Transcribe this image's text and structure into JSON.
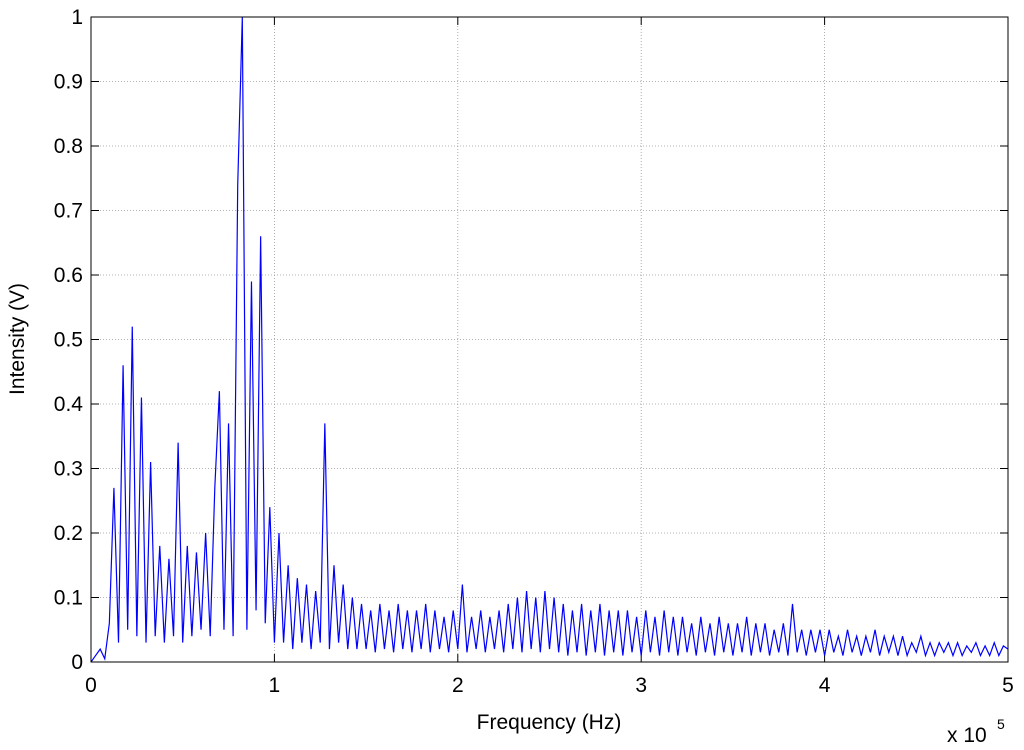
{
  "chart_data": {
    "type": "line",
    "xlabel": "Frequency (Hz)",
    "ylabel": "Intensity (V)",
    "x_multiplier": "x 10",
    "x_multiplier_exponent": "5",
    "xlim": [
      0,
      5
    ],
    "ylim": [
      0,
      1
    ],
    "xticks": [
      0,
      1,
      2,
      3,
      4,
      5
    ],
    "yticks": [
      0,
      0.1,
      0.2,
      0.3,
      0.4,
      0.5,
      0.6,
      0.7,
      0.8,
      0.9,
      1
    ],
    "grid": true,
    "series": [
      {
        "color": "#0000ff",
        "x": [
          0,
          0.025,
          0.05,
          0.075,
          0.1,
          0.125,
          0.15,
          0.175,
          0.2,
          0.225,
          0.25,
          0.275,
          0.3,
          0.325,
          0.35,
          0.375,
          0.4,
          0.425,
          0.45,
          0.475,
          0.5,
          0.525,
          0.55,
          0.575,
          0.6,
          0.625,
          0.65,
          0.675,
          0.7,
          0.725,
          0.75,
          0.775,
          0.8,
          0.825,
          0.85,
          0.875,
          0.9,
          0.925,
          0.95,
          0.975,
          1,
          1.025,
          1.05,
          1.075,
          1.1,
          1.125,
          1.15,
          1.175,
          1.2,
          1.225,
          1.25,
          1.275,
          1.3,
          1.325,
          1.35,
          1.375,
          1.4,
          1.425,
          1.45,
          1.475,
          1.5,
          1.525,
          1.55,
          1.575,
          1.6,
          1.625,
          1.65,
          1.675,
          1.7,
          1.725,
          1.75,
          1.775,
          1.8,
          1.825,
          1.85,
          1.875,
          1.9,
          1.925,
          1.95,
          1.975,
          2,
          2.025,
          2.05,
          2.075,
          2.1,
          2.125,
          2.15,
          2.175,
          2.2,
          2.225,
          2.25,
          2.275,
          2.3,
          2.325,
          2.35,
          2.375,
          2.4,
          2.425,
          2.45,
          2.475,
          2.5,
          2.525,
          2.55,
          2.575,
          2.6,
          2.625,
          2.65,
          2.675,
          2.7,
          2.725,
          2.75,
          2.775,
          2.8,
          2.825,
          2.85,
          2.875,
          2.9,
          2.925,
          2.95,
          2.975,
          3,
          3.025,
          3.05,
          3.075,
          3.1,
          3.125,
          3.15,
          3.175,
          3.2,
          3.225,
          3.25,
          3.275,
          3.3,
          3.325,
          3.35,
          3.375,
          3.4,
          3.425,
          3.45,
          3.475,
          3.5,
          3.525,
          3.55,
          3.575,
          3.6,
          3.625,
          3.65,
          3.675,
          3.7,
          3.725,
          3.75,
          3.775,
          3.8,
          3.825,
          3.85,
          3.875,
          3.9,
          3.925,
          3.95,
          3.975,
          4,
          4.025,
          4.05,
          4.075,
          4.1,
          4.125,
          4.15,
          4.175,
          4.2,
          4.225,
          4.25,
          4.275,
          4.3,
          4.325,
          4.35,
          4.375,
          4.4,
          4.425,
          4.45,
          4.475,
          4.5,
          4.525,
          4.55,
          4.575,
          4.6,
          4.625,
          4.65,
          4.675,
          4.7,
          4.725,
          4.75,
          4.775,
          4.8,
          4.825,
          4.85,
          4.875,
          4.9,
          4.925,
          4.95,
          4.975,
          5
        ],
        "values": [
          0,
          0.01,
          0.02,
          0.005,
          0.06,
          0.27,
          0.03,
          0.46,
          0.05,
          0.52,
          0.04,
          0.41,
          0.03,
          0.31,
          0.04,
          0.18,
          0.03,
          0.16,
          0.04,
          0.34,
          0.03,
          0.18,
          0.04,
          0.17,
          0.05,
          0.2,
          0.04,
          0.27,
          0.42,
          0.05,
          0.37,
          0.04,
          0.74,
          1.0,
          0.05,
          0.59,
          0.08,
          0.66,
          0.06,
          0.24,
          0.03,
          0.2,
          0.03,
          0.15,
          0.02,
          0.13,
          0.03,
          0.12,
          0.02,
          0.11,
          0.03,
          0.37,
          0.02,
          0.15,
          0.03,
          0.12,
          0.02,
          0.1,
          0.02,
          0.09,
          0.02,
          0.08,
          0.015,
          0.09,
          0.02,
          0.08,
          0.015,
          0.09,
          0.02,
          0.08,
          0.015,
          0.08,
          0.02,
          0.09,
          0.015,
          0.08,
          0.02,
          0.07,
          0.015,
          0.08,
          0.02,
          0.12,
          0.015,
          0.07,
          0.02,
          0.08,
          0.015,
          0.07,
          0.02,
          0.08,
          0.015,
          0.09,
          0.02,
          0.1,
          0.015,
          0.11,
          0.02,
          0.1,
          0.015,
          0.11,
          0.02,
          0.1,
          0.015,
          0.09,
          0.01,
          0.08,
          0.015,
          0.09,
          0.01,
          0.08,
          0.015,
          0.09,
          0.01,
          0.08,
          0.015,
          0.08,
          0.01,
          0.08,
          0.015,
          0.07,
          0.01,
          0.08,
          0.015,
          0.07,
          0.01,
          0.08,
          0.015,
          0.07,
          0.01,
          0.07,
          0.015,
          0.06,
          0.01,
          0.07,
          0.015,
          0.06,
          0.01,
          0.07,
          0.015,
          0.06,
          0.01,
          0.06,
          0.015,
          0.07,
          0.01,
          0.06,
          0.015,
          0.06,
          0.01,
          0.05,
          0.015,
          0.06,
          0.01,
          0.09,
          0.015,
          0.05,
          0.01,
          0.05,
          0.015,
          0.05,
          0.01,
          0.05,
          0.015,
          0.04,
          0.01,
          0.05,
          0.015,
          0.04,
          0.01,
          0.04,
          0.015,
          0.05,
          0.01,
          0.04,
          0.015,
          0.04,
          0.01,
          0.04,
          0.01,
          0.03,
          0.015,
          0.04,
          0.01,
          0.03,
          0.01,
          0.03,
          0.015,
          0.03,
          0.01,
          0.03,
          0.01,
          0.025,
          0.015,
          0.03,
          0.01,
          0.025,
          0.01,
          0.03,
          0.01,
          0.025,
          0.02
        ]
      }
    ]
  }
}
